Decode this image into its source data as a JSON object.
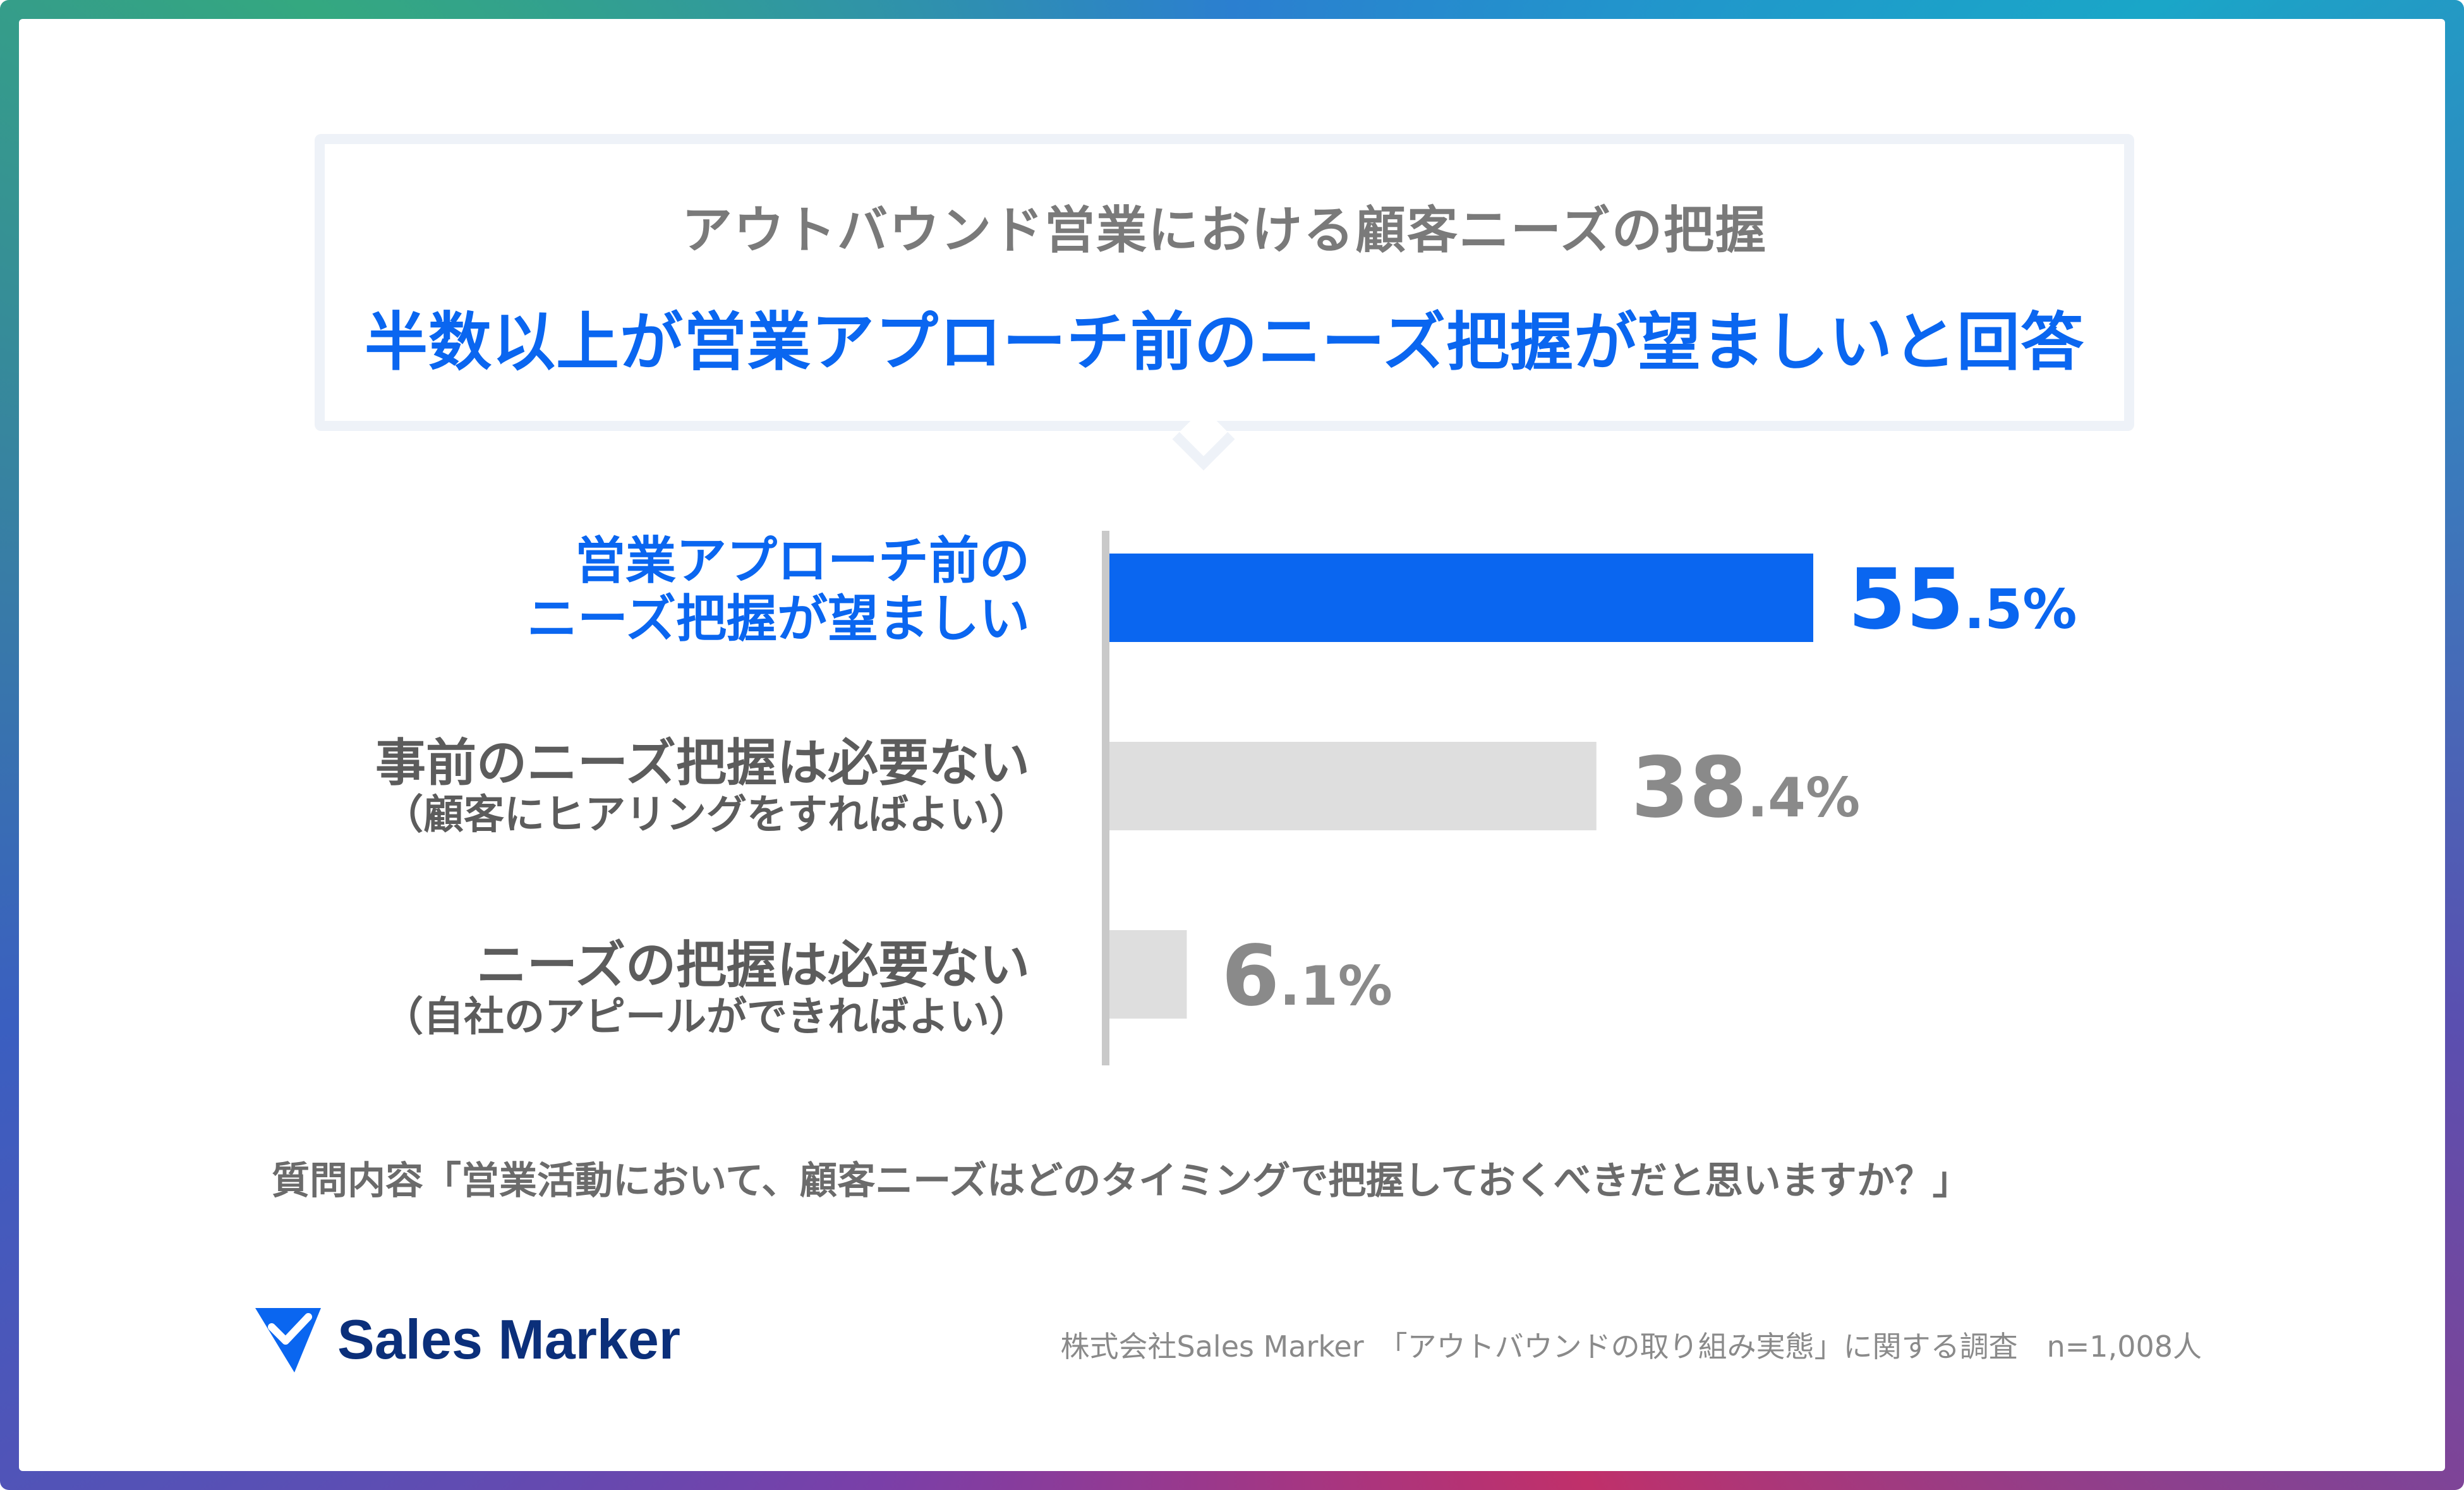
{
  "header": {
    "subtitle": "アウトバウンド営業における顧客ニーズの把握",
    "title": "半数以上が営業アプローチ前のニーズ把握が望ましいと回答"
  },
  "chart_data": {
    "type": "bar",
    "orientation": "horizontal",
    "categories": [
      {
        "line1": "営業アプローチ前の",
        "line2": "ニーズ把握が望ましい"
      },
      {
        "line1": "事前のニーズ把握は必要ない",
        "line2": "（顧客にヒアリングをすればよい）"
      },
      {
        "line1": "ニーズの把握は必要ない",
        "line2": "（自社のアピールができればよい）"
      }
    ],
    "values": [
      55.5,
      38.4,
      6.1
    ],
    "value_labels": [
      {
        "int": "55",
        "dec": ".5%"
      },
      {
        "int": "38",
        "dec": ".4%"
      },
      {
        "int": "6",
        "dec": ".1%"
      }
    ],
    "colors": [
      "#0a66f0",
      "#dedede",
      "#dedede"
    ],
    "label_colors": [
      "#0a66f0",
      "#8a8a8a",
      "#8a8a8a"
    ],
    "category_colors": [
      "#0a66f0",
      "#5c5c5c",
      "#5c5c5c"
    ],
    "unit": "%",
    "xlim": [
      0,
      55.5
    ],
    "grid": false,
    "legend": "none"
  },
  "footer": {
    "question": "質問内容「営業活動において、顧客ニーズはどのタイミングで把握しておくべきだと思いますか？」",
    "logo_text": "Sales Marker",
    "source": "株式会社Sales Marker　「アウトバウンドの取り組み実態」に関する調査　n=1,008人"
  }
}
